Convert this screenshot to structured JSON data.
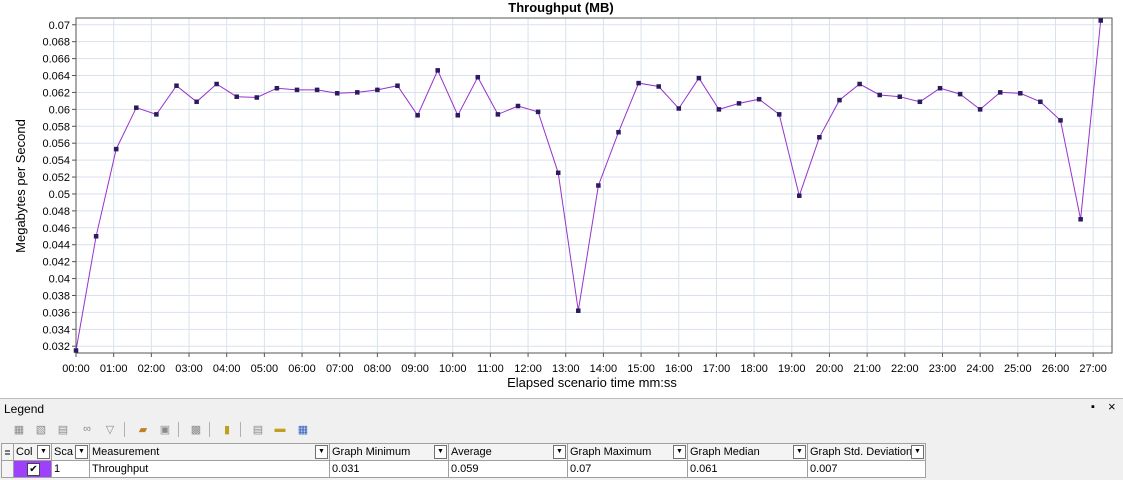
{
  "chart_data": {
    "type": "line",
    "title": "Throughput (MB)",
    "xlabel": "Elapsed scenario time mm:ss",
    "ylabel": "Megabytes per Second",
    "ylim": [
      0.0312,
      0.0708
    ],
    "yticks": [
      "0.032",
      "0.034",
      "0.036",
      "0.038",
      "0.04",
      "0.042",
      "0.044",
      "0.046",
      "0.048",
      "0.05",
      "0.052",
      "0.054",
      "0.056",
      "0.058",
      "0.06",
      "0.062",
      "0.064",
      "0.066",
      "0.068",
      "0.07"
    ],
    "xlim_seconds": [
      0,
      1650
    ],
    "xticks": [
      "00:00",
      "01:00",
      "02:00",
      "03:00",
      "04:00",
      "05:00",
      "06:00",
      "07:00",
      "08:00",
      "09:00",
      "10:00",
      "11:00",
      "12:00",
      "13:00",
      "14:00",
      "15:00",
      "16:00",
      "17:00",
      "18:00",
      "19:00",
      "20:00",
      "21:00",
      "22:00",
      "23:00",
      "24:00",
      "25:00",
      "26:00",
      "27:00"
    ],
    "grid": true,
    "series": [
      {
        "name": "Throughput",
        "color": "#9932cc",
        "x": [
          "00:00",
          "00:32",
          "01:04",
          "01:36",
          "02:08",
          "02:40",
          "03:12",
          "03:44",
          "04:16",
          "04:48",
          "05:20",
          "05:52",
          "06:24",
          "06:56",
          "07:28",
          "08:00",
          "08:32",
          "09:04",
          "09:36",
          "10:08",
          "10:40",
          "11:12",
          "11:44",
          "12:16",
          "12:48",
          "13:20",
          "13:52",
          "14:24",
          "14:56",
          "15:28",
          "16:00",
          "16:32",
          "17:04",
          "17:36",
          "18:08",
          "18:40",
          "19:12",
          "19:44",
          "20:16",
          "20:48",
          "21:20",
          "21:52",
          "22:24",
          "22:56",
          "23:28",
          "24:00",
          "24:32",
          "25:04",
          "25:36",
          "26:08",
          "26:40",
          "27:12"
        ],
        "values": [
          0.0315,
          0.045,
          0.0553,
          0.0602,
          0.0594,
          0.0628,
          0.0609,
          0.063,
          0.0615,
          0.0614,
          0.0625,
          0.0623,
          0.0623,
          0.0619,
          0.062,
          0.0623,
          0.0628,
          0.0593,
          0.0646,
          0.0593,
          0.0638,
          0.0594,
          0.0604,
          0.0597,
          0.0525,
          0.0362,
          0.051,
          0.0573,
          0.0631,
          0.0627,
          0.0601,
          0.0637,
          0.06,
          0.0607,
          0.0612,
          0.0594,
          0.0498,
          0.0567,
          0.0611,
          0.063,
          0.0617,
          0.0615,
          0.0609,
          0.0625,
          0.0618,
          0.06,
          0.062,
          0.0619,
          0.0609,
          0.0587,
          0.047,
          0.0705
        ]
      }
    ]
  },
  "legend": {
    "title": "Legend",
    "pin_glyph": "📌",
    "close_glyph": "×",
    "toolbar_icons": [
      "legend-config-icon",
      "legend-filter-icon",
      "legend-sort-icon",
      "legend-link-icon",
      "legend-funnel-icon",
      "legend-edit-icon",
      "legend-copy-icon",
      "legend-export-icon",
      "legend-columns-icon",
      "legend-copy-data-icon",
      "legend-highlight-icon",
      "legend-save-icon"
    ],
    "columns": [
      "",
      "Col",
      "Sca",
      "Measurement",
      "Graph Minimum",
      "Average",
      "Graph Maximum",
      "Graph Median",
      "Graph Std. Deviation"
    ],
    "rows": [
      {
        "color": "#a040ff",
        "checked": "✔",
        "scale": "1",
        "measurement": "Throughput",
        "min": "0.031",
        "avg": "0.059",
        "max": "0.07",
        "median": "0.061",
        "std": "0.007"
      }
    ]
  }
}
